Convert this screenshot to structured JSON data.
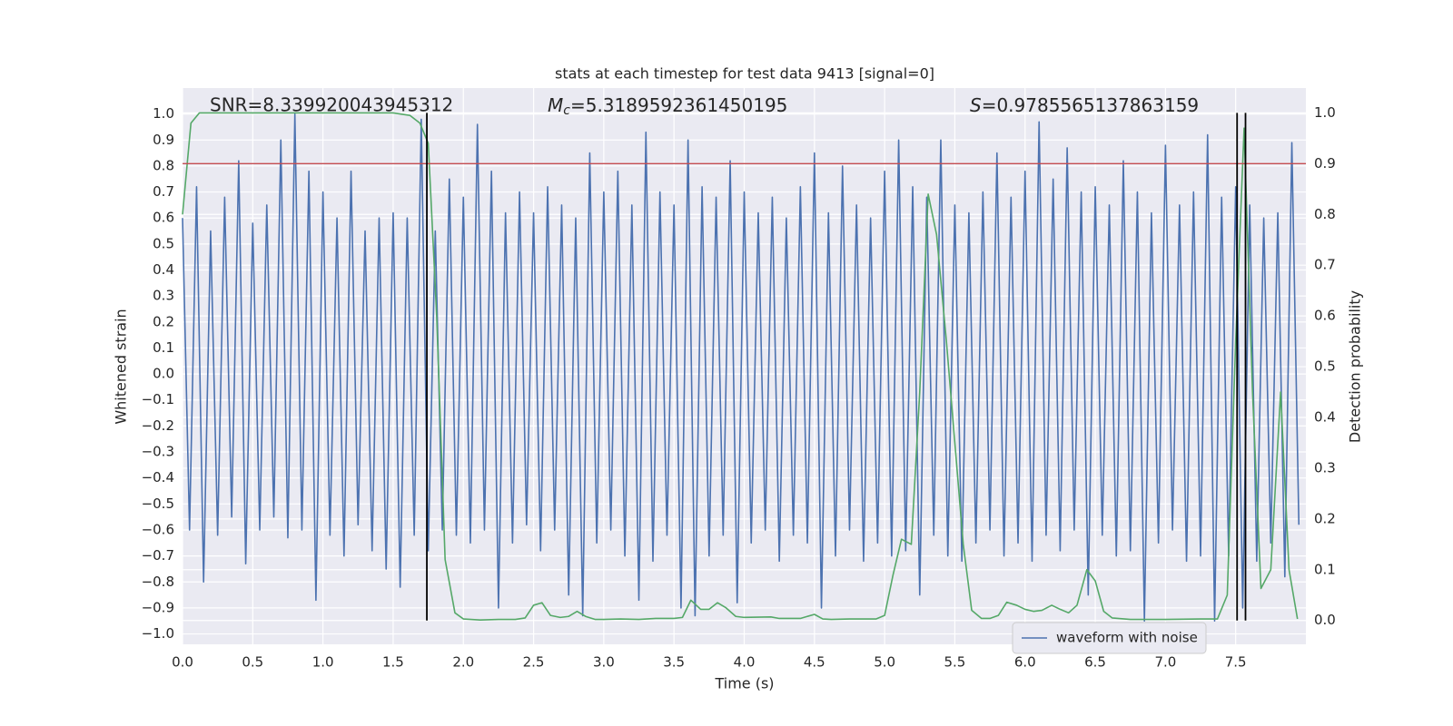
{
  "chart_data": {
    "type": "line",
    "title": "stats at each timestep for test data 9413 [signal=0]",
    "xlabel": "Time (s)",
    "ylabel": "Whitened strain",
    "y2label": "Detection probability",
    "annotations": [
      {
        "text": "SNR=8.339920043945312"
      },
      {
        "symbol": "M",
        "subscript": "c",
        "text": "=5.3189592361450195"
      },
      {
        "symbol": "S",
        "text": "=0.9785565137863159"
      }
    ],
    "xlim": [
      0,
      8
    ],
    "ylim": [
      -1.04,
      1.1
    ],
    "y2lim": [
      -0.047,
      1.049
    ],
    "xticks": [
      {
        "value": 0,
        "label": "0.0"
      },
      0.5,
      {
        "value": 1,
        "label": "1.0"
      },
      1.5,
      {
        "value": 2,
        "label": "2.0"
      },
      2.5,
      {
        "value": 3,
        "label": "3.0"
      },
      3.5,
      {
        "value": 4,
        "label": "4.0"
      },
      4.5,
      {
        "value": 5,
        "label": "5.0"
      },
      5.5,
      {
        "value": 6,
        "label": "6.0"
      },
      6.5,
      {
        "value": 7,
        "label": "7.0"
      },
      7.5
    ],
    "yticks": [
      {
        "value": -1,
        "label": "−1.0"
      },
      {
        "value": -0.9,
        "label": "−0.9"
      },
      {
        "value": -0.8,
        "label": "−0.8"
      },
      {
        "value": -0.7,
        "label": "−0.7"
      },
      {
        "value": -0.6,
        "label": "−0.6"
      },
      {
        "value": -0.5,
        "label": "−0.5"
      },
      {
        "value": -0.4,
        "label": "−0.4"
      },
      {
        "value": -0.3,
        "label": "−0.3"
      },
      {
        "value": -0.2,
        "label": "−0.2"
      },
      {
        "value": -0.1,
        "label": "−0.1"
      },
      {
        "value": 0,
        "label": "0.0"
      },
      0.1,
      0.2,
      0.3,
      0.4,
      0.5,
      0.6,
      0.7,
      0.8,
      0.9,
      {
        "value": 1,
        "label": "1.0"
      }
    ],
    "y2ticks": [
      {
        "value": 0,
        "label": "0.0"
      },
      0.1,
      0.2,
      0.3,
      0.4,
      0.5,
      0.6,
      0.7,
      0.8,
      0.9,
      {
        "value": 1,
        "label": "1.0"
      }
    ],
    "grid": true,
    "legend": "lower right",
    "series": [
      {
        "name": "waveform with noise",
        "color": "#4c72b0",
        "axis": "y",
        "x": [
          0,
          0.05,
          0.1,
          0.15,
          0.2,
          0.25,
          0.3,
          0.35,
          0.4,
          0.45,
          0.5,
          0.55,
          0.6,
          0.65,
          0.7,
          0.75,
          0.8,
          0.85,
          0.9,
          0.95,
          1,
          1.05,
          1.1,
          1.15,
          1.2,
          1.25,
          1.3,
          1.35,
          1.4,
          1.45,
          1.5,
          1.55,
          1.6,
          1.65,
          1.7,
          1.75,
          1.8,
          1.85,
          1.9,
          1.95,
          2,
          2.05,
          2.1,
          2.15,
          2.2,
          2.25,
          2.3,
          2.35,
          2.4,
          2.45,
          2.5,
          2.55,
          2.6,
          2.65,
          2.7,
          2.75,
          2.8,
          2.85,
          2.9,
          2.95,
          3,
          3.05,
          3.1,
          3.15,
          3.2,
          3.25,
          3.3,
          3.35,
          3.4,
          3.45,
          3.5,
          3.55,
          3.6,
          3.65,
          3.7,
          3.75,
          3.8,
          3.85,
          3.9,
          3.95,
          4,
          4.05,
          4.1,
          4.15,
          4.2,
          4.25,
          4.3,
          4.35,
          4.4,
          4.45,
          4.5,
          4.55,
          4.6,
          4.65,
          4.7,
          4.75,
          4.8,
          4.85,
          4.9,
          4.95,
          5,
          5.05,
          5.1,
          5.15,
          5.2,
          5.25,
          5.3,
          5.35,
          5.4,
          5.45,
          5.5,
          5.55,
          5.6,
          5.65,
          5.7,
          5.75,
          5.8,
          5.85,
          5.9,
          5.95,
          6,
          6.05,
          6.1,
          6.15,
          6.2,
          6.25,
          6.3,
          6.35,
          6.4,
          6.45,
          6.5,
          6.55,
          6.6,
          6.65,
          6.7,
          6.75,
          6.8,
          6.85,
          6.9,
          6.95,
          7,
          7.05,
          7.1,
          7.15,
          7.2,
          7.25,
          7.3,
          7.35,
          7.4,
          7.45,
          7.5,
          7.55,
          7.6,
          7.65,
          7.7,
          7.75,
          7.8,
          7.85,
          7.9,
          7.95
        ],
        "values": [
          0.6,
          -0.6,
          0.72,
          -0.8,
          0.55,
          -0.62,
          0.68,
          -0.55,
          0.82,
          -0.73,
          0.58,
          -0.6,
          0.65,
          -0.55,
          0.9,
          -0.63,
          1.0,
          -0.6,
          0.78,
          -0.87,
          0.7,
          -0.62,
          0.6,
          -0.7,
          0.78,
          -0.58,
          0.55,
          -0.68,
          0.6,
          -0.75,
          0.62,
          -0.82,
          0.6,
          -0.62,
          0.98,
          -0.68,
          0.55,
          -0.6,
          0.75,
          -0.62,
          0.68,
          -0.65,
          0.96,
          -0.6,
          0.78,
          -0.9,
          0.62,
          -0.65,
          0.7,
          -0.58,
          0.62,
          -0.68,
          0.72,
          -0.6,
          0.65,
          -0.85,
          0.6,
          -0.93,
          0.85,
          -0.65,
          0.7,
          -0.6,
          0.78,
          -0.7,
          0.65,
          -0.87,
          0.93,
          -0.72,
          0.7,
          -0.62,
          0.65,
          -0.9,
          0.9,
          -0.93,
          0.72,
          -0.7,
          0.68,
          -0.62,
          0.82,
          -0.88,
          0.7,
          -0.65,
          0.62,
          -0.6,
          0.68,
          -0.72,
          0.6,
          -0.62,
          0.72,
          -0.65,
          0.85,
          -0.9,
          0.62,
          -0.7,
          0.8,
          -0.6,
          0.65,
          -0.72,
          0.6,
          -0.65,
          0.78,
          -0.7,
          0.9,
          -0.68,
          0.72,
          -0.85,
          0.68,
          -0.62,
          0.9,
          -0.7,
          0.65,
          -0.72,
          0.62,
          -0.65,
          0.7,
          -0.6,
          0.85,
          -0.7,
          0.68,
          -0.65,
          0.78,
          -0.72,
          0.97,
          -0.62,
          0.75,
          -0.68,
          0.87,
          -0.6,
          0.7,
          -0.85,
          0.72,
          -0.62,
          0.65,
          -0.7,
          0.82,
          -0.68,
          0.7,
          -0.95,
          0.62,
          -0.65,
          0.88,
          -0.6,
          0.65,
          -0.72,
          0.7,
          -0.7,
          0.92,
          -0.95,
          0.68,
          -0.7,
          0.72,
          -0.9,
          0.65,
          -0.72,
          0.6,
          -0.65,
          0.62,
          -0.78,
          0.89,
          -0.58
        ]
      },
      {
        "color": "#55a868",
        "axis": "y2",
        "x": [
          0,
          0.06,
          0.12,
          0.5,
          1,
          1.5,
          1.62,
          1.69,
          1.75,
          1.81,
          1.87,
          1.94,
          2,
          2.12,
          2.25,
          2.37,
          2.44,
          2.5,
          2.56,
          2.62,
          2.69,
          2.75,
          2.81,
          2.87,
          2.94,
          3,
          3.12,
          3.25,
          3.37,
          3.5,
          3.56,
          3.62,
          3.69,
          3.75,
          3.81,
          3.87,
          3.94,
          4,
          4.19,
          4.25,
          4.4,
          4.5,
          4.56,
          4.62,
          4.75,
          4.94,
          5,
          5.06,
          5.12,
          5.19,
          5.25,
          5.31,
          5.37,
          5.44,
          5.56,
          5.62,
          5.69,
          5.75,
          5.81,
          5.87,
          5.94,
          6,
          6.06,
          6.12,
          6.19,
          6.25,
          6.31,
          6.37,
          6.44,
          6.5,
          6.56,
          6.62,
          6.75,
          7,
          7.25,
          7.37,
          7.44,
          7.5,
          7.56,
          7.62,
          7.68,
          7.75,
          7.82,
          7.88,
          7.94
        ],
        "values": [
          0.8,
          0.98,
          1.0,
          1.0,
          1.0,
          1.0,
          0.995,
          0.98,
          0.94,
          0.6,
          0.12,
          0.015,
          0.003,
          0.001,
          0.002,
          0.002,
          0.005,
          0.03,
          0.035,
          0.01,
          0.006,
          0.008,
          0.018,
          0.008,
          0.002,
          0.002,
          0.003,
          0.002,
          0.004,
          0.004,
          0.006,
          0.04,
          0.022,
          0.022,
          0.035,
          0.025,
          0.008,
          0.006,
          0.007,
          0.004,
          0.004,
          0.012,
          0.003,
          0.002,
          0.003,
          0.003,
          0.01,
          0.09,
          0.16,
          0.15,
          0.45,
          0.84,
          0.76,
          0.55,
          0.15,
          0.02,
          0.004,
          0.004,
          0.01,
          0.036,
          0.03,
          0.022,
          0.018,
          0.02,
          0.03,
          0.022,
          0.015,
          0.03,
          0.1,
          0.078,
          0.018,
          0.005,
          0.002,
          0.002,
          0.003,
          0.003,
          0.05,
          0.55,
          0.97,
          0.45,
          0.063,
          0.1,
          0.45,
          0.1,
          0.003
        ]
      }
    ],
    "hline": {
      "value": 0.9,
      "axis": "y2",
      "color": "#c44e52"
    },
    "vlines": {
      "x": [
        1.74,
        7.51,
        7.57
      ],
      "ymin": 0,
      "ymax": 1,
      "axis": "y2",
      "color": "#000000"
    }
  }
}
